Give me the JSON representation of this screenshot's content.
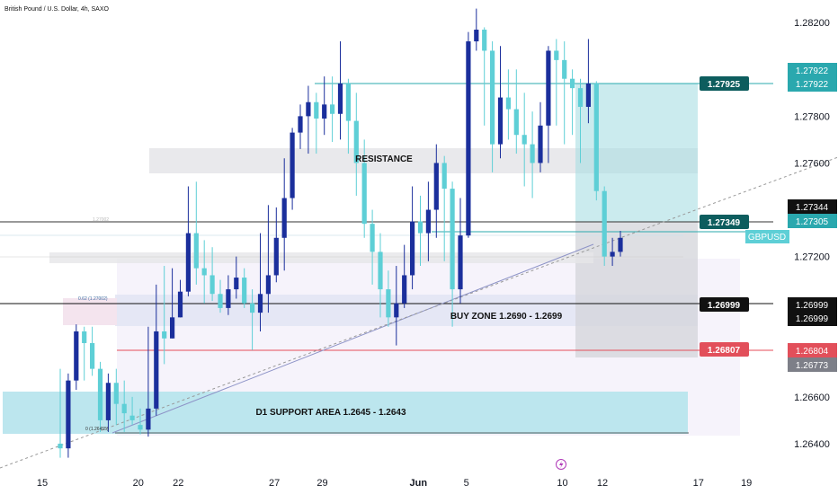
{
  "header": {
    "symbol_title": "British Pound / U.S. Dollar, 4h, SAXO"
  },
  "chart_data": {
    "type": "candlestick",
    "ylim": [
      1.263,
      1.2822
    ],
    "y_ticks": [
      {
        "value": 1.282,
        "label": "1.28200"
      },
      {
        "value": 1.278,
        "label": "1.27800"
      },
      {
        "value": 1.276,
        "label": "1.27600"
      },
      {
        "value": 1.272,
        "label": "1.27200"
      },
      {
        "value": 1.266,
        "label": "1.26600"
      },
      {
        "value": 1.264,
        "label": "1.26400"
      }
    ],
    "x_ticks": [
      {
        "index": 0,
        "label": "15",
        "bold": false
      },
      {
        "index": 12,
        "label": "20",
        "bold": false
      },
      {
        "index": 17,
        "label": "22",
        "bold": false
      },
      {
        "index": 29,
        "label": "27",
        "bold": false
      },
      {
        "index": 35,
        "label": "29",
        "bold": false
      },
      {
        "index": 47,
        "label": "Jun",
        "bold": true
      },
      {
        "index": 53,
        "label": "5",
        "bold": false
      },
      {
        "index": 65,
        "label": "10",
        "bold": false
      },
      {
        "index": 70,
        "label": "12",
        "bold": false
      },
      {
        "index": 82,
        "label": "17",
        "bold": false
      },
      {
        "index": 88,
        "label": "19",
        "bold": false
      }
    ],
    "candles": [
      [
        1.264,
        1.2638,
        1.2672,
        1.2634
      ],
      [
        1.2638,
        1.2667,
        1.267,
        1.2634
      ],
      [
        1.2667,
        1.2688,
        1.2691,
        1.2663
      ],
      [
        1.2688,
        1.2683,
        1.269,
        1.2667
      ],
      [
        1.2683,
        1.2672,
        1.269,
        1.2669
      ],
      [
        1.2672,
        1.265,
        1.2675,
        1.2645
      ],
      [
        1.265,
        1.2666,
        1.267,
        1.2645
      ],
      [
        1.2666,
        1.2657,
        1.2672,
        1.2648
      ],
      [
        1.2657,
        1.2653,
        1.2667,
        1.2645
      ],
      [
        1.2652,
        1.265,
        1.266,
        1.2648
      ],
      [
        1.2648,
        1.2646,
        1.2655,
        1.2644
      ],
      [
        1.2646,
        1.2655,
        1.269,
        1.2643
      ],
      [
        1.2655,
        1.2688,
        1.2708,
        1.2652
      ],
      [
        1.2688,
        1.2685,
        1.2716,
        1.2674
      ],
      [
        1.2685,
        1.2694,
        1.2715,
        1.2685
      ],
      [
        1.2694,
        1.2705,
        1.271,
        1.2694
      ],
      [
        1.2705,
        1.273,
        1.275,
        1.2703
      ],
      [
        1.273,
        1.2715,
        1.2752,
        1.2708
      ],
      [
        1.2715,
        1.2712,
        1.2727,
        1.27
      ],
      [
        1.2712,
        1.2704,
        1.2724,
        1.2701
      ],
      [
        1.2704,
        1.2698,
        1.271,
        1.2696
      ],
      [
        1.2698,
        1.2706,
        1.2712,
        1.2695
      ],
      [
        1.2706,
        1.2711,
        1.272,
        1.2702
      ],
      [
        1.2711,
        1.27,
        1.2715,
        1.2698
      ],
      [
        1.27,
        1.2696,
        1.2706,
        1.268
      ],
      [
        1.2696,
        1.2704,
        1.273,
        1.2688
      ],
      [
        1.2704,
        1.2712,
        1.2742,
        1.2696
      ],
      [
        1.2712,
        1.2728,
        1.2741,
        1.2709
      ],
      [
        1.2728,
        1.2745,
        1.2762,
        1.2714
      ],
      [
        1.2745,
        1.2773,
        1.2775,
        1.274
      ],
      [
        1.2773,
        1.278,
        1.2785,
        1.2766
      ],
      [
        1.278,
        1.2786,
        1.2793,
        1.2764
      ],
      [
        1.2786,
        1.2779,
        1.279,
        1.2764
      ],
      [
        1.2779,
        1.2785,
        1.2797,
        1.2772
      ],
      [
        1.2785,
        1.2781,
        1.2797,
        1.2769
      ],
      [
        1.2781,
        1.2794,
        1.2812,
        1.277
      ],
      [
        1.2794,
        1.2778,
        1.2796,
        1.2764
      ],
      [
        1.2778,
        1.276,
        1.279,
        1.2746
      ],
      [
        1.276,
        1.2734,
        1.277,
        1.2728
      ],
      [
        1.2734,
        1.2722,
        1.274,
        1.2708
      ],
      [
        1.2722,
        1.2706,
        1.273,
        1.2694
      ],
      [
        1.2706,
        1.2694,
        1.2714,
        1.269
      ],
      [
        1.2694,
        1.27,
        1.2716,
        1.2682
      ],
      [
        1.27,
        1.2712,
        1.2725,
        1.2698
      ],
      [
        1.2712,
        1.2735,
        1.275,
        1.2706
      ],
      [
        1.2735,
        1.273,
        1.2746,
        1.2716
      ],
      [
        1.273,
        1.274,
        1.2752,
        1.2718
      ],
      [
        1.274,
        1.276,
        1.2768,
        1.2728
      ],
      [
        1.276,
        1.2749,
        1.2763,
        1.2718
      ],
      [
        1.2749,
        1.2706,
        1.2752,
        1.269
      ],
      [
        1.2706,
        1.2729,
        1.2745,
        1.27
      ],
      [
        1.2729,
        1.2812,
        1.2816,
        1.2728
      ],
      [
        1.2812,
        1.2817,
        1.2826,
        1.2808
      ],
      [
        1.2817,
        1.2808,
        1.2818,
        1.2776
      ],
      [
        1.2808,
        1.2768,
        1.2812,
        1.2756
      ],
      [
        1.2768,
        1.2788,
        1.281,
        1.2762
      ],
      [
        1.2788,
        1.2783,
        1.28,
        1.277
      ],
      [
        1.2783,
        1.2772,
        1.28,
        1.2764
      ],
      [
        1.2772,
        1.2768,
        1.279,
        1.275
      ],
      [
        1.2768,
        1.276,
        1.2782,
        1.2745
      ],
      [
        1.276,
        1.2776,
        1.2786,
        1.2756
      ],
      [
        1.2776,
        1.2808,
        1.281,
        1.276
      ],
      [
        1.2808,
        1.2804,
        1.2813,
        1.2776
      ],
      [
        1.2804,
        1.2796,
        1.2812,
        1.2768
      ],
      [
        1.2796,
        1.2792,
        1.28,
        1.2772
      ],
      [
        1.2792,
        1.2784,
        1.2796,
        1.276
      ],
      [
        1.2784,
        1.2794,
        1.2813,
        1.2777
      ],
      [
        1.2794,
        1.2748,
        1.2795,
        1.2744
      ],
      [
        1.2748,
        1.272,
        1.275,
        1.2716
      ],
      [
        1.272,
        1.2722,
        1.2728,
        1.2716
      ],
      [
        1.2722,
        1.2728,
        1.2731,
        1.272
      ]
    ],
    "colors": {
      "up": "#1b2f9c",
      "down": "#5ecfd6"
    }
  },
  "annotations": {
    "resistance_label": "RESISTANCE",
    "buy_zone_label": "BUY ZONE 1.2690 - 1.2699",
    "support_label": "D1 SUPPORT AREA 1.2645 - 1.2643",
    "fib_top": "0.62 (1.27002)",
    "fib_bottom": "0 (1.26455)",
    "ghost_small": "1.27002",
    "event_icon": "lightning-icon"
  },
  "price_labels": {
    "tp": "1.27925",
    "entry": "1.27349",
    "buy_zone": "1.26999",
    "sl": "1.26807"
  },
  "axis_badges": {
    "tp_a": "1.27922",
    "tp_b": "1.27922",
    "last_a": "1.27344",
    "last_b": "1.27305",
    "symbol": "GBPUSD",
    "bz_a": "1.26999",
    "bz_b": "1.26999",
    "sl_a": "1.26804",
    "sl_b": "1.26773"
  }
}
